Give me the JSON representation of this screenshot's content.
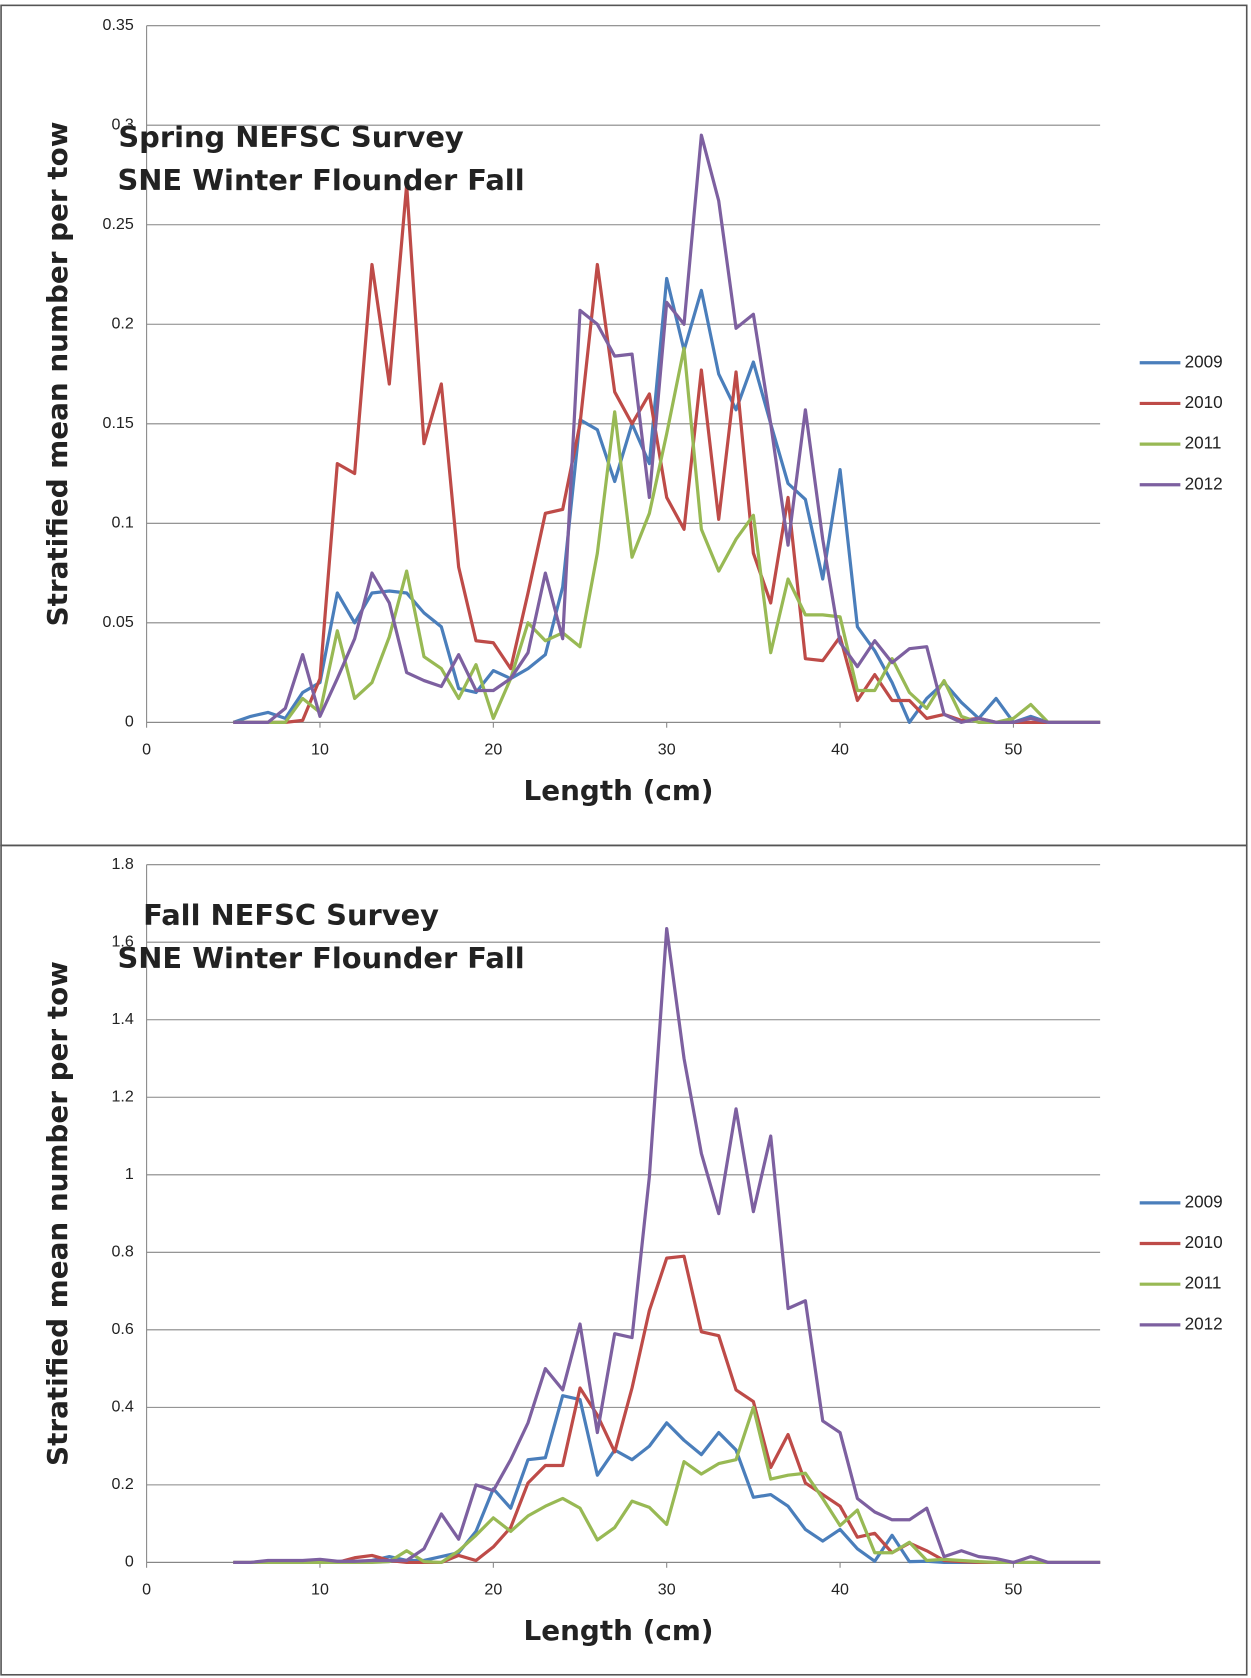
{
  "chart_data": [
    {
      "type": "line",
      "title": "Spring NEFSC Survey",
      "subtitle": "SNE Winter Flounder Fall",
      "x_label": "Length (cm)",
      "y_label": "Stratified mean number per tow",
      "xlim": [
        0,
        55
      ],
      "xticks": [
        0,
        10,
        20,
        30,
        40,
        50
      ],
      "ylim": [
        0,
        0.35
      ],
      "yticks": [
        0,
        0.05,
        0.1,
        0.15,
        0.2,
        0.25,
        0.3,
        0.35
      ],
      "grid": true,
      "legend": "right",
      "x": [
        5,
        6,
        7,
        8,
        9,
        10,
        11,
        12,
        13,
        14,
        15,
        16,
        17,
        18,
        19,
        20,
        21,
        22,
        23,
        24,
        25,
        26,
        27,
        28,
        29,
        30,
        31,
        32,
        33,
        34,
        35,
        36,
        37,
        38,
        39,
        40,
        41,
        42,
        43,
        44,
        45,
        46,
        47,
        48,
        49,
        50,
        51,
        52,
        53,
        54,
        55
      ],
      "series": [
        {
          "name": "2009",
          "color": "#4a7ebb",
          "values": [
            0,
            0.003,
            0.005,
            0.002,
            0.015,
            0.02,
            0.065,
            0.05,
            0.065,
            0.066,
            0.065,
            0.055,
            0.048,
            0.017,
            0.015,
            0.026,
            0.022,
            0.027,
            0.034,
            0.068,
            0.152,
            0.147,
            0.121,
            0.15,
            0.13,
            0.223,
            0.187,
            0.217,
            0.175,
            0.157,
            0.181,
            0.15,
            0.12,
            0.112,
            0.072,
            0.127,
            0.048,
            0.036,
            0.02,
            0,
            0.012,
            0.02,
            0.01,
            0.002,
            0.012,
            0,
            0.003,
            0,
            0,
            0,
            0
          ]
        },
        {
          "name": "2010",
          "color": "#be4b48",
          "values": [
            0,
            0,
            0,
            0,
            0.001,
            0.022,
            0.13,
            0.125,
            0.23,
            0.17,
            0.27,
            0.14,
            0.17,
            0.078,
            0.041,
            0.04,
            0.027,
            0.065,
            0.105,
            0.107,
            0.15,
            0.23,
            0.166,
            0.15,
            0.165,
            0.113,
            0.097,
            0.177,
            0.102,
            0.176,
            0.085,
            0.06,
            0.113,
            0.032,
            0.031,
            0.043,
            0.011,
            0.024,
            0.011,
            0.011,
            0.002,
            0.004,
            0.001,
            0.002,
            0,
            0,
            0,
            0,
            0,
            0,
            0
          ]
        },
        {
          "name": "2011",
          "color": "#98b954",
          "values": [
            0,
            0,
            0,
            0,
            0.012,
            0.005,
            0.046,
            0.012,
            0.02,
            0.043,
            0.076,
            0.033,
            0.027,
            0.012,
            0.029,
            0.002,
            0.022,
            0.05,
            0.041,
            0.045,
            0.038,
            0.085,
            0.156,
            0.083,
            0.105,
            0.145,
            0.188,
            0.097,
            0.076,
            0.092,
            0.104,
            0.035,
            0.072,
            0.054,
            0.054,
            0.053,
            0.016,
            0.016,
            0.032,
            0.015,
            0.007,
            0.021,
            0.003,
            0,
            0,
            0.002,
            0.009,
            0,
            0,
            0,
            0
          ]
        },
        {
          "name": "2012",
          "color": "#7d60a0",
          "values": [
            0,
            0,
            0,
            0.007,
            0.034,
            0.003,
            0.022,
            0.042,
            0.075,
            0.06,
            0.025,
            0.021,
            0.018,
            0.034,
            0.016,
            0.016,
            0.022,
            0.035,
            0.075,
            0.042,
            0.207,
            0.2,
            0.184,
            0.185,
            0.113,
            0.211,
            0.2,
            0.295,
            0.262,
            0.198,
            0.205,
            0.15,
            0.089,
            0.157,
            0.092,
            0.04,
            0.028,
            0.041,
            0.03,
            0.037,
            0.038,
            0.004,
            0,
            0.002,
            0,
            0,
            0.002,
            0,
            0,
            0,
            0
          ]
        }
      ]
    },
    {
      "type": "line",
      "title": "Fall NEFSC Survey",
      "subtitle": "SNE Winter Flounder Fall",
      "x_label": "Length (cm)",
      "y_label": "Stratified mean number per tow",
      "xlim": [
        0,
        55
      ],
      "xticks": [
        0,
        10,
        20,
        30,
        40,
        50
      ],
      "ylim": [
        0,
        1.8
      ],
      "yticks": [
        0,
        0.2,
        0.4,
        0.6,
        0.8,
        1,
        1.2,
        1.4,
        1.6,
        1.8
      ],
      "grid": true,
      "legend": "right",
      "x": [
        5,
        6,
        7,
        8,
        9,
        10,
        11,
        12,
        13,
        14,
        15,
        16,
        17,
        18,
        19,
        20,
        21,
        22,
        23,
        24,
        25,
        26,
        27,
        28,
        29,
        30,
        31,
        32,
        33,
        34,
        35,
        36,
        37,
        38,
        39,
        40,
        41,
        42,
        43,
        44,
        45,
        46,
        47,
        48,
        49,
        50,
        51,
        52,
        53,
        54,
        55
      ],
      "series": [
        {
          "name": "2009",
          "color": "#4a7ebb",
          "values": [
            0,
            0,
            0.002,
            0.002,
            0.002,
            0.003,
            0,
            0,
            0.005,
            0.015,
            0.005,
            0.005,
            0.015,
            0.025,
            0.08,
            0.19,
            0.14,
            0.265,
            0.27,
            0.43,
            0.42,
            0.225,
            0.29,
            0.265,
            0.3,
            0.36,
            0.315,
            0.278,
            0.335,
            0.29,
            0.168,
            0.175,
            0.145,
            0.085,
            0.055,
            0.085,
            0.035,
            0.003,
            0.07,
            0.002,
            0.003,
            0,
            0,
            0,
            0,
            0,
            0,
            0,
            0,
            0,
            0
          ]
        },
        {
          "name": "2010",
          "color": "#be4b48",
          "values": [
            0,
            0,
            0,
            0,
            0,
            0.003,
            0,
            0.012,
            0.018,
            0.005,
            0,
            0,
            0,
            0.018,
            0.005,
            0.04,
            0.09,
            0.205,
            0.25,
            0.25,
            0.45,
            0.38,
            0.285,
            0.45,
            0.65,
            0.785,
            0.79,
            0.595,
            0.585,
            0.445,
            0.415,
            0.245,
            0.33,
            0.205,
            0.175,
            0.145,
            0.065,
            0.075,
            0.025,
            0.05,
            0.03,
            0.005,
            0.002,
            0,
            0,
            0,
            0,
            0,
            0,
            0,
            0
          ]
        },
        {
          "name": "2011",
          "color": "#98b954",
          "values": [
            0,
            0,
            0,
            0,
            0,
            0,
            0,
            0,
            0,
            0.002,
            0.03,
            0.002,
            0,
            0.03,
            0.07,
            0.115,
            0.08,
            0.12,
            0.145,
            0.165,
            0.14,
            0.058,
            0.09,
            0.158,
            0.142,
            0.098,
            0.26,
            0.228,
            0.255,
            0.265,
            0.4,
            0.215,
            0.225,
            0.23,
            0.165,
            0.095,
            0.135,
            0.025,
            0.025,
            0.052,
            0.005,
            0.008,
            0.005,
            0.002,
            0,
            0,
            0,
            0,
            0,
            0,
            0
          ]
        },
        {
          "name": "2012",
          "color": "#7d60a0",
          "values": [
            0,
            0,
            0.005,
            0.005,
            0.005,
            0.008,
            0.003,
            0.003,
            0.005,
            0.005,
            0.005,
            0.035,
            0.125,
            0.06,
            0.2,
            0.185,
            0.265,
            0.36,
            0.5,
            0.445,
            0.615,
            0.335,
            0.59,
            0.58,
            0.995,
            1.635,
            1.3,
            1.055,
            0.9,
            1.17,
            0.905,
            1.1,
            0.655,
            0.675,
            0.365,
            0.335,
            0.165,
            0.13,
            0.11,
            0.11,
            0.14,
            0.015,
            0.03,
            0.015,
            0.01,
            0,
            0.015,
            0,
            0,
            0,
            0
          ]
        }
      ]
    }
  ]
}
